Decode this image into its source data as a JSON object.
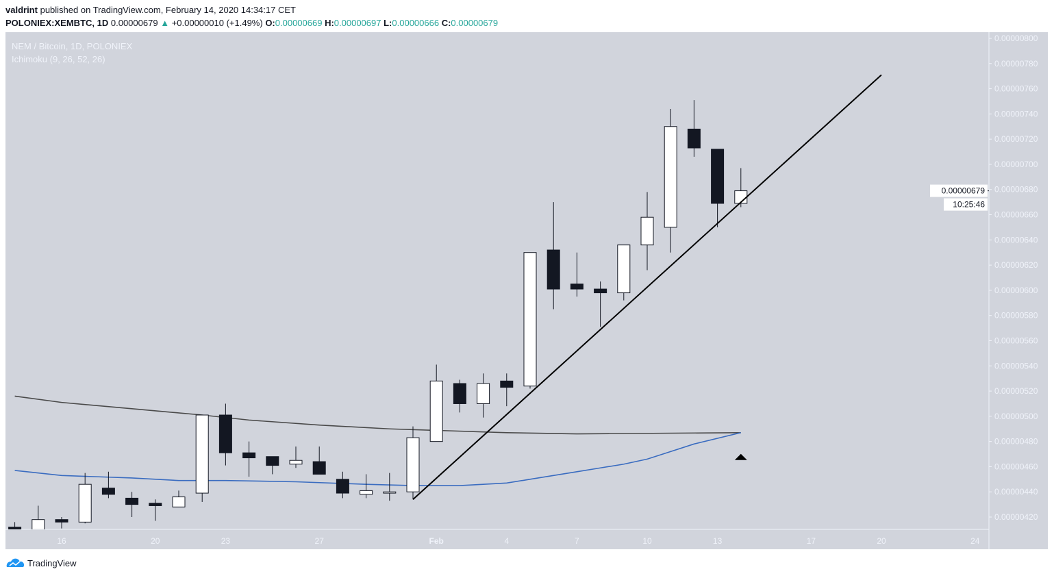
{
  "header": {
    "author": "valdrint",
    "published_text": "published on TradingView.com, February 14, 2020 14:34:17 CET",
    "symbol": "POLONIEX:XEMBTC, 1D",
    "last_price": "0.00000679",
    "change": "+0.00000010 (+1.49%)",
    "change_direction": "up",
    "o_label": "O:",
    "o_value": "0.00000669",
    "h_label": "H:",
    "h_value": "0.00000697",
    "l_label": "L:",
    "l_value": "0.00000666",
    "c_label": "C:",
    "c_value": "0.00000679"
  },
  "legend": {
    "title": "NEM / Bitcoin, 1D, POLONIEX",
    "indicator": "Ichimoku (9, 26, 52, 26)"
  },
  "footer": {
    "brand": "TradingView"
  },
  "colors": {
    "background": "#d1d4dc",
    "up_body": "#ffffff",
    "down_body": "#131722",
    "wick": "#131722",
    "line_dark": "#4a4a4a",
    "line_blue": "#3a6cc0",
    "change_up": "#26a69a"
  },
  "chart_data": {
    "type": "candlestick",
    "title": "NEM / Bitcoin, 1D, POLONIEX",
    "ylim": [
      4.1e-06,
      8.05e-06
    ],
    "xlim": [
      "2020-01-14",
      "2020-02-25"
    ],
    "grid": false,
    "y_ticks": [
      "0.00000800",
      "0.00000780",
      "0.00000760",
      "0.00000740",
      "0.00000720",
      "0.00000700",
      "0.00000680",
      "0.00000660",
      "0.00000640",
      "0.00000620",
      "0.00000600",
      "0.00000580",
      "0.00000560",
      "0.00000540",
      "0.00000520",
      "0.00000500",
      "0.00000480",
      "0.00000460",
      "0.00000440",
      "0.00000420"
    ],
    "x_ticks": [
      {
        "label": "16",
        "date": "2020-01-16"
      },
      {
        "label": "20",
        "date": "2020-01-20"
      },
      {
        "label": "23",
        "date": "2020-01-23"
      },
      {
        "label": "27",
        "date": "2020-01-27"
      },
      {
        "label": "Feb",
        "date": "2020-02-01"
      },
      {
        "label": "4",
        "date": "2020-02-04"
      },
      {
        "label": "7",
        "date": "2020-02-07"
      },
      {
        "label": "10",
        "date": "2020-02-10"
      },
      {
        "label": "13",
        "date": "2020-02-13"
      },
      {
        "label": "17",
        "date": "2020-02-17"
      },
      {
        "label": "20",
        "date": "2020-02-20"
      },
      {
        "label": "24",
        "date": "2020-02-24"
      }
    ],
    "candle_fields": [
      "date",
      "open",
      "high",
      "low",
      "close"
    ],
    "candles": [
      [
        "2020-01-14",
        4.12e-06,
        4.16e-06,
        4.05e-06,
        4.1e-06
      ],
      [
        "2020-01-15",
        4.1e-06,
        4.29e-06,
        4.08e-06,
        4.18e-06
      ],
      [
        "2020-01-16",
        4.18e-06,
        4.2e-06,
        4.11e-06,
        4.16e-06
      ],
      [
        "2020-01-17",
        4.16e-06,
        4.55e-06,
        4.15e-06,
        4.46e-06
      ],
      [
        "2020-01-18",
        4.43e-06,
        4.56e-06,
        4.35e-06,
        4.38e-06
      ],
      [
        "2020-01-19",
        4.35e-06,
        4.4e-06,
        4.2e-06,
        4.3e-06
      ],
      [
        "2020-01-20",
        4.31e-06,
        4.34e-06,
        4.17e-06,
        4.29e-06
      ],
      [
        "2020-01-21",
        4.28e-06,
        4.41e-06,
        4.28e-06,
        4.36e-06
      ],
      [
        "2020-01-22",
        4.39e-06,
        5.01e-06,
        4.32e-06,
        5.01e-06
      ],
      [
        "2020-01-23",
        5.01e-06,
        5.1e-06,
        4.61e-06,
        4.71e-06
      ],
      [
        "2020-01-24",
        4.71e-06,
        4.8e-06,
        4.52e-06,
        4.67e-06
      ],
      [
        "2020-01-25",
        4.68e-06,
        4.68e-06,
        4.54e-06,
        4.61e-06
      ],
      [
        "2020-01-26",
        4.62e-06,
        4.76e-06,
        4.59e-06,
        4.65e-06
      ],
      [
        "2020-01-27",
        4.64e-06,
        4.76e-06,
        4.54e-06,
        4.54e-06
      ],
      [
        "2020-01-28",
        4.5e-06,
        4.56e-06,
        4.35e-06,
        4.39e-06
      ],
      [
        "2020-01-29",
        4.38e-06,
        4.54e-06,
        4.35e-06,
        4.41e-06
      ],
      [
        "2020-01-30",
        4.39e-06,
        4.55e-06,
        4.33e-06,
        4.4e-06
      ],
      [
        "2020-01-31",
        4.4e-06,
        4.92e-06,
        4.34e-06,
        4.83e-06
      ],
      [
        "2020-02-01",
        4.8e-06,
        5.41e-06,
        4.8e-06,
        5.28e-06
      ],
      [
        "2020-02-02",
        5.26e-06,
        5.29e-06,
        5.03e-06,
        5.1e-06
      ],
      [
        "2020-02-03",
        5.1e-06,
        5.34e-06,
        4.99e-06,
        5.26e-06
      ],
      [
        "2020-02-04",
        5.28e-06,
        5.34e-06,
        5.08e-06,
        5.23e-06
      ],
      [
        "2020-02-05",
        5.24e-06,
        6.3e-06,
        5.22e-06,
        6.3e-06
      ],
      [
        "2020-02-06",
        6.32e-06,
        6.7e-06,
        5.85e-06,
        6.01e-06
      ],
      [
        "2020-02-07",
        6.05e-06,
        6.3e-06,
        5.95e-06,
        6.01e-06
      ],
      [
        "2020-02-08",
        6.01e-06,
        6.07e-06,
        5.71e-06,
        5.98e-06
      ],
      [
        "2020-02-09",
        5.98e-06,
        6.36e-06,
        5.92e-06,
        6.36e-06
      ],
      [
        "2020-02-10",
        6.36e-06,
        6.78e-06,
        6.16e-06,
        6.58e-06
      ],
      [
        "2020-02-11",
        6.5e-06,
        7.44e-06,
        6.3e-06,
        7.3e-06
      ],
      [
        "2020-02-12",
        7.28e-06,
        7.51e-06,
        7.06e-06,
        7.13e-06
      ],
      [
        "2020-02-13",
        7.12e-06,
        7.12e-06,
        6.5e-06,
        6.69e-06
      ],
      [
        "2020-02-14",
        6.69e-06,
        6.97e-06,
        6.66e-06,
        6.79e-06
      ]
    ],
    "lines": [
      {
        "color": "#4a4a4a",
        "points": [
          [
            "2020-01-14",
            5.16e-06
          ],
          [
            "2020-01-16",
            5.11e-06
          ],
          [
            "2020-01-19",
            5.06e-06
          ],
          [
            "2020-01-22",
            5.01e-06
          ],
          [
            "2020-01-24",
            4.97e-06
          ],
          [
            "2020-01-27",
            4.93e-06
          ],
          [
            "2020-01-30",
            4.9e-06
          ],
          [
            "2020-02-04",
            4.87e-06
          ],
          [
            "2020-02-07",
            4.86e-06
          ],
          [
            "2020-02-14",
            4.87e-06
          ]
        ]
      },
      {
        "color": "#3a6cc0",
        "points": [
          [
            "2020-01-14",
            4.57e-06
          ],
          [
            "2020-01-16",
            4.53e-06
          ],
          [
            "2020-01-19",
            4.51e-06
          ],
          [
            "2020-01-21",
            4.49e-06
          ],
          [
            "2020-01-23",
            4.49e-06
          ],
          [
            "2020-01-26",
            4.48e-06
          ],
          [
            "2020-01-29",
            4.46e-06
          ],
          [
            "2020-01-31",
            4.45e-06
          ],
          [
            "2020-02-02",
            4.45e-06
          ],
          [
            "2020-02-04",
            4.47e-06
          ],
          [
            "2020-02-05",
            4.5e-06
          ],
          [
            "2020-02-06",
            4.53e-06
          ],
          [
            "2020-02-07",
            4.56e-06
          ],
          [
            "2020-02-08",
            4.59e-06
          ],
          [
            "2020-02-09",
            4.62e-06
          ],
          [
            "2020-02-10",
            4.66e-06
          ],
          [
            "2020-02-11",
            4.72e-06
          ],
          [
            "2020-02-12",
            4.78e-06
          ],
          [
            "2020-02-14",
            4.87e-06
          ]
        ]
      }
    ],
    "trendline": [
      [
        "2020-01-31",
        4.34e-06
      ],
      [
        "2020-02-20",
        7.71e-06
      ]
    ],
    "marker": {
      "shape": "triangle-up",
      "date": "2020-02-14",
      "price": 4.68e-06
    },
    "last_price_label": "0.00000679",
    "last_price_value": 6.79e-06,
    "countdown": "10:25:46"
  }
}
